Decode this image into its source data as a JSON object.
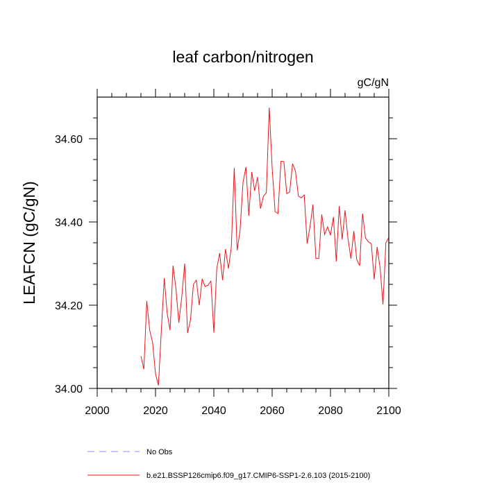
{
  "chart_data": {
    "type": "line",
    "title": "leaf carbon/nitrogen",
    "units": "gC/gN",
    "xlabel": "",
    "ylabel": "LEAFCN  (gC/gN)",
    "xlim": [
      2000,
      2100
    ],
    "ylim": [
      34.0,
      34.7
    ],
    "xticks": [
      2000,
      2020,
      2040,
      2060,
      2080,
      2100
    ],
    "xtick_labels": [
      "2000",
      "2020",
      "2040",
      "2060",
      "2080",
      "2100"
    ],
    "yticks": [
      34.0,
      34.2,
      34.4,
      34.6
    ],
    "ytick_labels": [
      "34.00",
      "34.20",
      "34.40",
      "34.60"
    ],
    "grid": false,
    "legend": [
      {
        "label": "No Obs",
        "color": "#8c8cff",
        "style": "dashed"
      },
      {
        "label": "b.e21.BSSP126cmip6.f09_g17.CMIP6-SSP1-2.6.103 (2015-2100)",
        "color": "#e8151a",
        "style": "solid"
      }
    ],
    "series": [
      {
        "name": "b.e21.BSSP126cmip6.f09_g17.CMIP6-SSP1-2.6.103 (2015-2100)",
        "color": "#e8151a",
        "x": [
          2015,
          2016,
          2017,
          2018,
          2019,
          2020,
          2021,
          2022,
          2023,
          2024,
          2025,
          2026,
          2027,
          2028,
          2029,
          2030,
          2031,
          2032,
          2033,
          2034,
          2035,
          2036,
          2037,
          2038,
          2039,
          2040,
          2041,
          2042,
          2043,
          2044,
          2045,
          2046,
          2047,
          2048,
          2049,
          2050,
          2051,
          2052,
          2053,
          2054,
          2055,
          2056,
          2057,
          2058,
          2059,
          2060,
          2061,
          2062,
          2063,
          2064,
          2065,
          2066,
          2067,
          2068,
          2069,
          2070,
          2071,
          2072,
          2073,
          2074,
          2075,
          2076,
          2077,
          2078,
          2079,
          2080,
          2081,
          2082,
          2083,
          2084,
          2085,
          2086,
          2087,
          2088,
          2089,
          2090,
          2091,
          2092,
          2093,
          2094,
          2095,
          2096,
          2097,
          2098,
          2099,
          2100
        ],
        "values": [
          34.078,
          34.046,
          34.21,
          34.14,
          34.11,
          34.035,
          34.007,
          34.14,
          34.265,
          34.18,
          34.14,
          34.295,
          34.24,
          34.158,
          34.22,
          34.3,
          34.133,
          34.165,
          34.25,
          34.26,
          34.2,
          34.263,
          34.245,
          34.248,
          34.258,
          34.134,
          34.288,
          34.325,
          34.26,
          34.335,
          34.288,
          34.34,
          34.53,
          34.332,
          34.38,
          34.495,
          34.532,
          34.415,
          34.52,
          34.475,
          34.508,
          34.432,
          34.462,
          34.47,
          34.675,
          34.53,
          34.425,
          34.42,
          34.546,
          34.545,
          34.468,
          34.472,
          34.54,
          34.522,
          34.462,
          34.458,
          34.465,
          34.348,
          34.39,
          34.442,
          34.312,
          34.312,
          34.418,
          34.37,
          34.388,
          34.368,
          34.412,
          34.305,
          34.438,
          34.358,
          34.428,
          34.36,
          34.312,
          34.378,
          34.31,
          34.295,
          34.42,
          34.362,
          34.352,
          34.348,
          34.262,
          34.34,
          34.29,
          34.202,
          34.35,
          34.362
        ]
      }
    ]
  }
}
